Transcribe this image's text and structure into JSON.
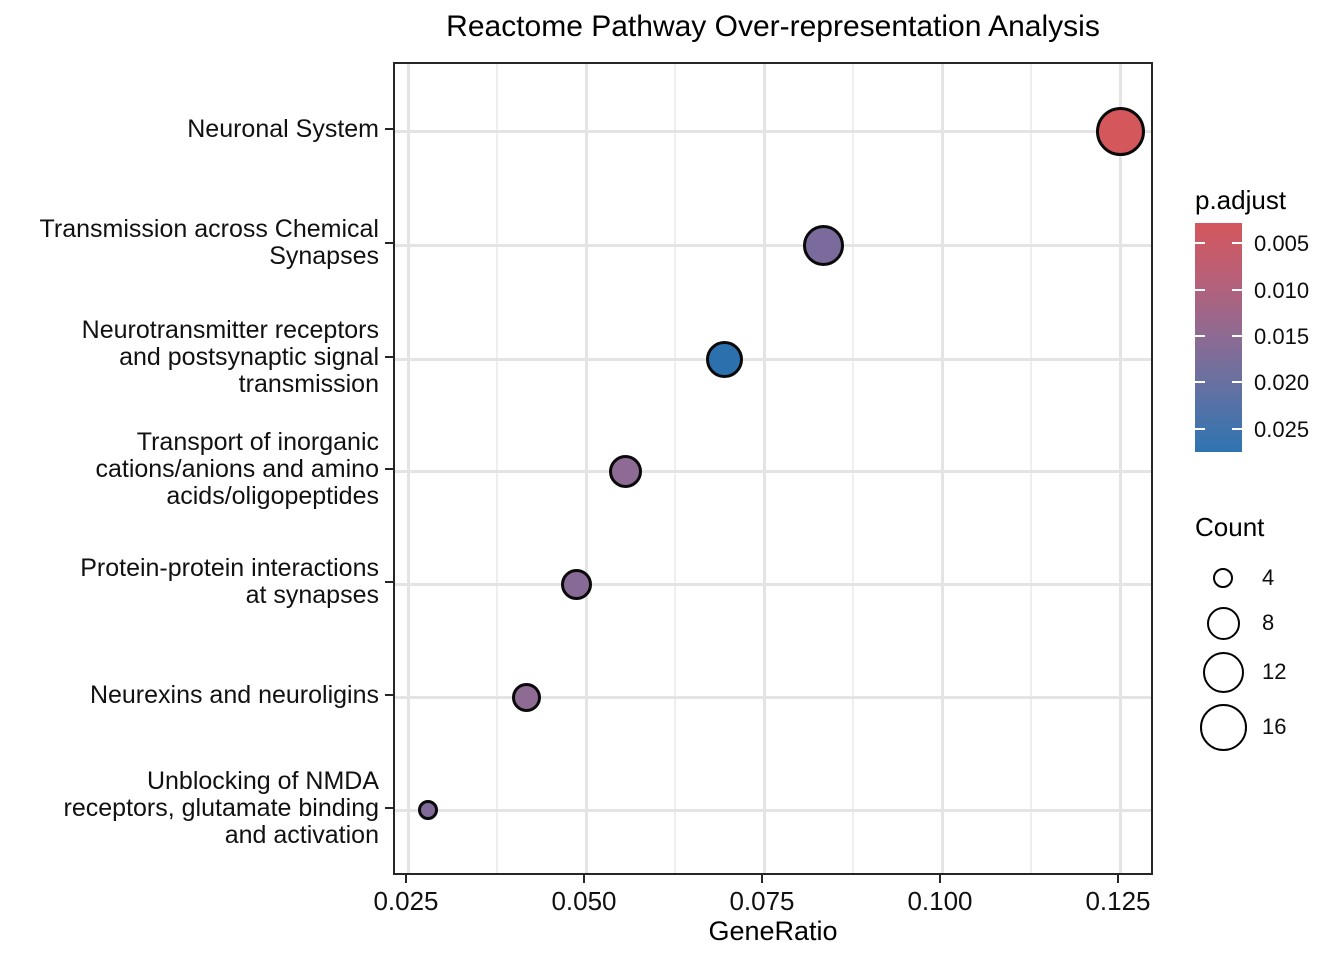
{
  "chart_data": {
    "type": "scatter",
    "title": "Reactome Pathway Over-representation Analysis",
    "xlabel": "GeneRatio",
    "ylabel": "",
    "x_ticks": [
      0.025,
      0.05,
      0.075,
      0.1,
      0.125
    ],
    "x_tick_labels": [
      "0.025",
      "0.050",
      "0.075",
      "0.100",
      "0.125"
    ],
    "x_minor_ticks": [
      0.0375,
      0.0625,
      0.0875,
      0.1125
    ],
    "xlim": [
      0.0232,
      0.1299
    ],
    "grid": true,
    "legend_position": "right",
    "pathways": [
      {
        "label": "Neuronal System",
        "label_lines": [
          "Neuronal System"
        ],
        "gene_ratio": 0.125,
        "count": 18,
        "p_adjust": 0.003,
        "color": "#d4575c"
      },
      {
        "label": "Transmission across Chemical Synapses",
        "label_lines": [
          "Transmission across Chemical",
          "Synapses"
        ],
        "gene_ratio": 0.0833,
        "count": 12,
        "p_adjust": 0.018,
        "color": "#7a6b9c"
      },
      {
        "label": "Neurotransmitter receptors and postsynaptic signal transmission",
        "label_lines": [
          "Neurotransmitter receptors",
          "and postsynaptic signal",
          "transmission"
        ],
        "gene_ratio": 0.0694,
        "count": 10,
        "p_adjust": 0.027,
        "color": "#2d70ae"
      },
      {
        "label": "Transport of inorganic cations/anions and amino acids/oligopeptides",
        "label_lines": [
          "Transport of inorganic",
          "cations/anions and amino",
          "acids/oligopeptides"
        ],
        "gene_ratio": 0.0556,
        "count": 8,
        "p_adjust": 0.015,
        "color": "#8e6b94"
      },
      {
        "label": "Protein-protein interactions at synapses",
        "label_lines": [
          "Protein-protein interactions",
          "at synapses"
        ],
        "gene_ratio": 0.0486,
        "count": 7,
        "p_adjust": 0.016,
        "color": "#876a96"
      },
      {
        "label": "Neurexins and neuroligins",
        "label_lines": [
          "Neurexins and neuroligins"
        ],
        "gene_ratio": 0.0417,
        "count": 6,
        "p_adjust": 0.015,
        "color": "#8d6b93"
      },
      {
        "label": "Unblocking of NMDA receptors, glutamate binding and activation",
        "label_lines": [
          "Unblocking of NMDA",
          "receptors, glutamate binding",
          "and activation"
        ],
        "gene_ratio": 0.0278,
        "count": 4,
        "p_adjust": 0.017,
        "color": "#806b98"
      }
    ],
    "legend_padjust": {
      "title": "p.adjust",
      "tick_values": [
        0.005,
        0.01,
        0.015,
        0.02,
        0.025
      ],
      "tick_labels": [
        "0.005",
        "0.010",
        "0.015",
        "0.020",
        "0.025"
      ],
      "domain": [
        0.0028,
        0.0275
      ],
      "gradient": [
        "#d4575c",
        "#b86079",
        "#8d6b93",
        "#5e72a4",
        "#2e74b1"
      ]
    },
    "legend_count": {
      "title": "Count",
      "items": [
        {
          "label": "4",
          "value": 4
        },
        {
          "label": "8",
          "value": 8
        },
        {
          "label": "12",
          "value": 12
        },
        {
          "label": "16",
          "value": 16
        }
      ]
    }
  }
}
